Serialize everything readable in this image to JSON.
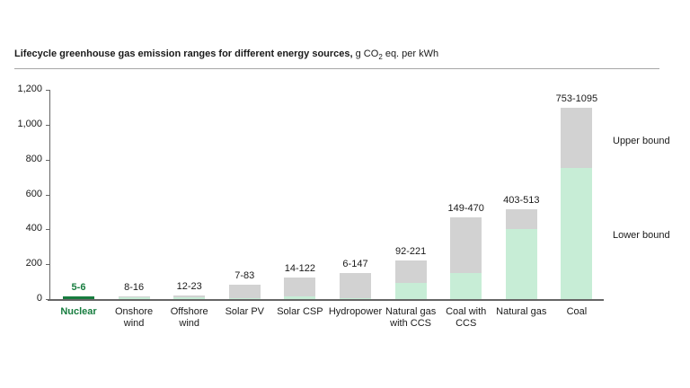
{
  "title": {
    "bold": "Lifecycle greenhouse gas emission ranges for different energy sources,",
    "unit_prefix": " g CO",
    "unit_sub": "2",
    "unit_suffix": " eq. per kWh"
  },
  "chart_data": {
    "type": "bar",
    "subtype": "stacked-range",
    "title": "Lifecycle greenhouse gas emission ranges for different energy sources, g CO2 eq. per kWh",
    "categories": [
      "Nuclear",
      "Onshore\nwind",
      "Offshore\nwind",
      "Solar PV",
      "Solar CSP",
      "Hydropower",
      "Natural gas\nwith CCS",
      "Coal with\nCCS",
      "Natural gas",
      "Coal"
    ],
    "series": [
      {
        "name": "Lower bound",
        "values": [
          5,
          8,
          12,
          7,
          14,
          6,
          92,
          149,
          403,
          753
        ]
      },
      {
        "name": "Upper bound",
        "values": [
          6,
          16,
          23,
          83,
          122,
          147,
          221,
          470,
          513,
          1095
        ]
      }
    ],
    "bar_labels": [
      "5-6",
      "8-16",
      "12-23",
      "7-83",
      "14-122",
      "6-147",
      "92-221",
      "149-470",
      "403-513",
      "753-1095"
    ],
    "xlabel": "",
    "ylabel": "",
    "ylim": [
      0,
      1200
    ],
    "y_ticks": [
      "0",
      "200",
      "400",
      "600",
      "800",
      "1,000",
      "1,200"
    ],
    "y_tick_values": [
      0,
      200,
      400,
      600,
      800,
      1000,
      1200
    ],
    "grid": false,
    "legend_position": "right-annotations",
    "annotations": {
      "upper": "Upper bound",
      "lower": "Lower bound"
    },
    "highlight_category": "Nuclear",
    "colors": {
      "lower_bound_fill": "#c7edd6",
      "range_fill": "#d2d2d2",
      "highlight_fill": "#177d3f",
      "highlight_text": "#177d3f",
      "axis": "#666666",
      "text": "#1a1a1a"
    }
  }
}
